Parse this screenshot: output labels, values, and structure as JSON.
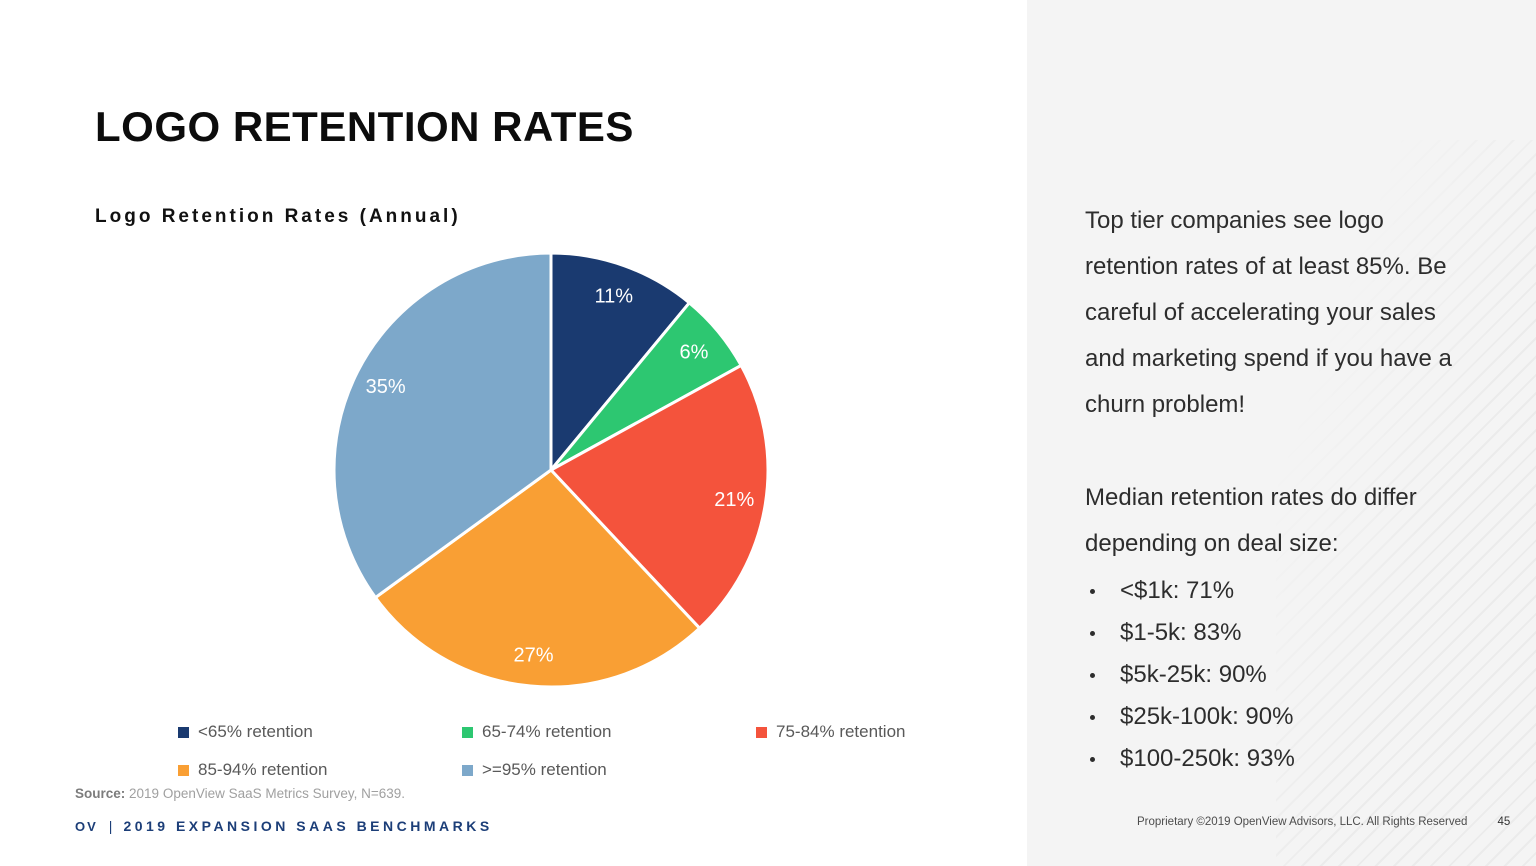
{
  "slide": {
    "title": "LOGO RETENTION RATES",
    "brand": {
      "ov": "OV",
      "divider": "|",
      "name": "2019 EXPANSION SAAS BENCHMARKS"
    },
    "proprietary": "Proprietary ©2019 OpenView Advisors, LLC. All Rights Reserved",
    "page_number": "45"
  },
  "chart_data": {
    "type": "pie",
    "title": "Logo Retention Rates (Annual)",
    "labels": [
      "<65% retention",
      "65-74% retention",
      "75-84% retention",
      "85-94% retention",
      ">=95% retention"
    ],
    "values": [
      11,
      6,
      21,
      27,
      35
    ],
    "value_labels": [
      "11%",
      "6%",
      "21%",
      "27%",
      "35%"
    ],
    "colors": [
      "#1A3A70",
      "#2DC771",
      "#F4533C",
      "#F99F34",
      "#7DA8CA"
    ],
    "start_angle_deg": 0,
    "direction": "clockwise",
    "legend_position": "bottom",
    "source_label": "Source:",
    "source_text": "2019 OpenView SaaS Metrics Survey, N=639."
  },
  "right_panel": {
    "background": "#f4f4f4",
    "paragraph1": "Top tier companies see logo retention rates of at least 85%. Be careful of accelerating your sales and marketing spend if you have a churn problem!",
    "paragraph2": "Median retention rates do differ depending on deal size:",
    "bullets": [
      "<$1k: 71%",
      "$1-5k: 83%",
      "$5k-25k: 90%",
      "$25k-100k: 90%",
      "$100-250k: 93%"
    ]
  }
}
